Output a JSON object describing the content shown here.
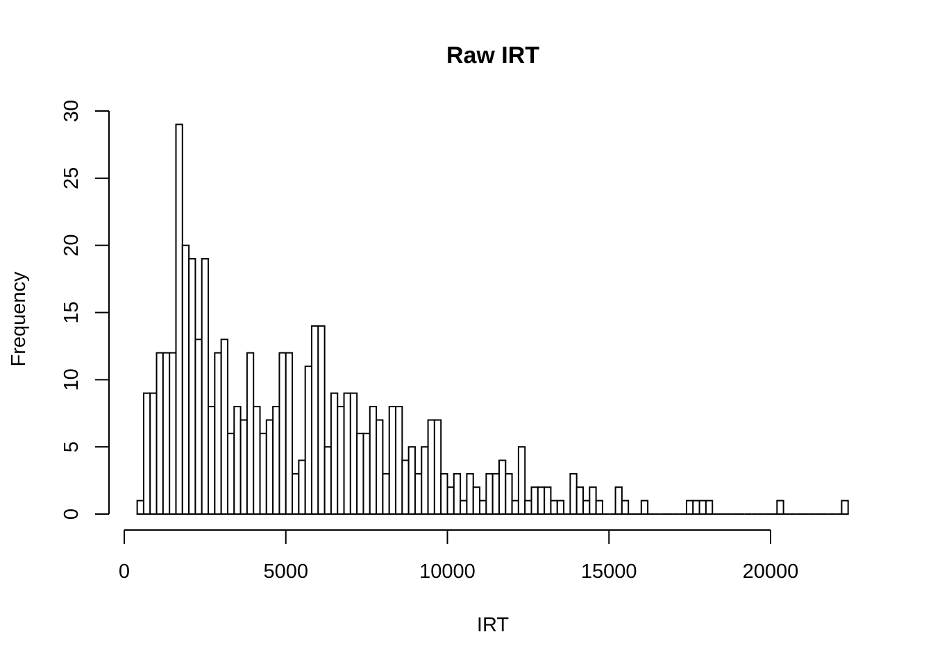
{
  "chart_data": {
    "type": "bar",
    "title": "Raw IRT",
    "xlabel": "IRT",
    "ylabel": "Frequency",
    "xlim": [
      0,
      22500
    ],
    "ylim": [
      0,
      30
    ],
    "x_ticks": [
      0,
      5000,
      10000,
      15000,
      20000
    ],
    "x_tick_labels": [
      "0",
      "5000",
      "10000",
      "15000",
      "20000"
    ],
    "y_ticks": [
      0,
      5,
      10,
      15,
      20,
      25,
      30
    ],
    "y_tick_labels": [
      "0",
      "5",
      "10",
      "15",
      "20",
      "25",
      "30"
    ],
    "bin_width": 200,
    "bins_start": [
      400,
      600,
      800,
      1000,
      1200,
      1400,
      1600,
      1800,
      2000,
      2200,
      2400,
      2600,
      2800,
      3000,
      3200,
      3400,
      3600,
      3800,
      4000,
      4200,
      4400,
      4600,
      4800,
      5000,
      5200,
      5400,
      5600,
      5800,
      6000,
      6200,
      6400,
      6600,
      6800,
      7000,
      7200,
      7400,
      7600,
      7800,
      8000,
      8200,
      8400,
      8600,
      8800,
      9000,
      9200,
      9400,
      9600,
      9800,
      10000,
      10200,
      10400,
      10600,
      10800,
      11000,
      11200,
      11400,
      11600,
      11800,
      12000,
      12200,
      12400,
      12600,
      12800,
      13000,
      13200,
      13400,
      13600,
      13800,
      14000,
      14200,
      14400,
      14600,
      14800,
      15000,
      15200,
      15400,
      15600,
      15800,
      16000,
      16200,
      16400,
      16600,
      16800,
      17000,
      17200,
      17400,
      17600,
      17800,
      18000,
      18200,
      18400,
      18600,
      18800,
      19000,
      19200,
      19400,
      19600,
      19800,
      20000,
      20200,
      20400,
      20600,
      20800,
      21000,
      21200,
      21400,
      21600,
      21800,
      22000,
      22200
    ],
    "values": [
      1,
      9,
      9,
      12,
      12,
      12,
      29,
      20,
      19,
      13,
      19,
      8,
      12,
      13,
      6,
      8,
      7,
      12,
      8,
      6,
      7,
      8,
      12,
      12,
      3,
      4,
      11,
      14,
      14,
      5,
      9,
      8,
      9,
      9,
      6,
      6,
      8,
      7,
      3,
      8,
      8,
      4,
      5,
      3,
      5,
      7,
      7,
      3,
      2,
      3,
      1,
      3,
      2,
      1,
      3,
      3,
      4,
      3,
      1,
      5,
      1,
      2,
      2,
      2,
      1,
      1,
      0,
      3,
      2,
      1,
      2,
      1,
      0,
      0,
      2,
      1,
      0,
      0,
      1,
      0,
      0,
      0,
      0,
      0,
      0,
      1,
      1,
      1,
      1,
      0,
      0,
      0,
      0,
      0,
      0,
      0,
      0,
      0,
      0,
      1,
      0,
      0,
      0,
      0,
      0,
      0,
      0,
      0,
      0,
      1
    ]
  }
}
